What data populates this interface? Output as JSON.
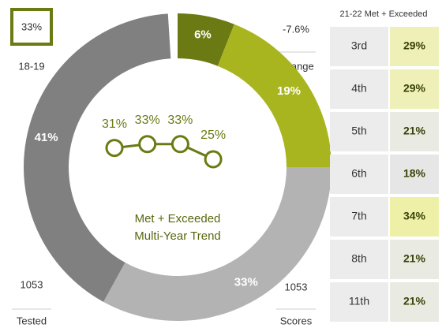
{
  "chart_data": [
    {
      "type": "donut",
      "values": [
        6,
        19,
        33,
        41
      ],
      "value_labels": [
        "6%",
        "19%",
        "33%",
        "41%"
      ],
      "colors": [
        "#6b7a12",
        "#a8b51f",
        "#b3b3b3",
        "#808080"
      ]
    },
    {
      "type": "line",
      "title": [
        "Met + Exceeded",
        "Multi-Year Trend"
      ],
      "values": [
        31,
        33,
        33,
        25
      ],
      "value_labels": [
        "31%",
        "33%",
        "33%",
        "25%"
      ],
      "color": "#6b7a12"
    }
  ],
  "stats": {
    "prior_value": "33%",
    "prior_label": "18-19",
    "change_value": "-7.6%",
    "change_label": "Change",
    "tested_value": "1053",
    "tested_label": "Tested",
    "scores_value": "1053",
    "scores_label": "Scores"
  },
  "table": {
    "header": "21-22 Met + Exceeded",
    "rows": [
      [
        "3rd",
        "29%"
      ],
      [
        "4th",
        "29%"
      ],
      [
        "5th",
        "21%"
      ],
      [
        "6th",
        "18%"
      ],
      [
        "7th",
        "34%"
      ],
      [
        "8th",
        "21%"
      ],
      [
        "11th",
        "21%"
      ]
    ]
  }
}
